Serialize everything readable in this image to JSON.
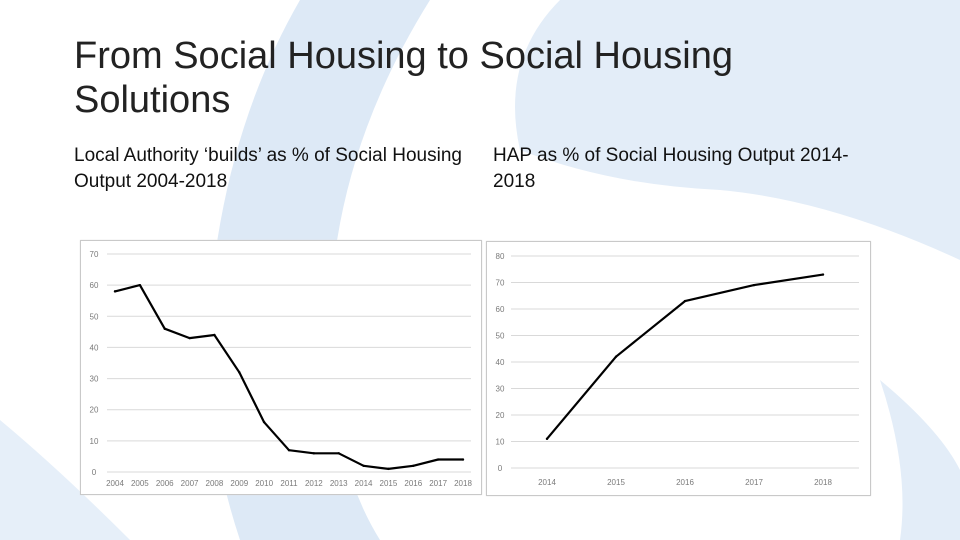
{
  "slide": {
    "title": "From Social Housing to Social Housing Solutions",
    "subtitle_left": "Local Authority ‘builds’ as % of Social Housing Output 2004-2018",
    "subtitle_right": "HAP as % of Social Housing Output 2014-2018"
  },
  "colors": {
    "background_shape": "#dde9f6",
    "background_shape_dark": "#cfdff1",
    "line": "#000000",
    "grid": "#d9d9d9",
    "tick_text": "#7a7a7a"
  },
  "chart_data": [
    {
      "type": "line",
      "title": "",
      "xlabel": "",
      "ylabel": "",
      "x": [
        "2004",
        "2005",
        "2006",
        "2007",
        "2008",
        "2009",
        "2010",
        "2011",
        "2012",
        "2013",
        "2014",
        "2015",
        "2016",
        "2017",
        "2018"
      ],
      "series": [
        {
          "values": [
            58,
            60,
            46,
            43,
            44,
            32,
            16,
            7,
            6,
            6,
            2,
            1,
            2,
            4,
            4
          ]
        }
      ],
      "ylim": [
        0,
        70
      ],
      "yticks": [
        0,
        10,
        20,
        30,
        40,
        50,
        60,
        70
      ],
      "grid": true
    },
    {
      "type": "line",
      "title": "",
      "xlabel": "",
      "ylabel": "",
      "x": [
        "2014",
        "2015",
        "2016",
        "2017",
        "2018"
      ],
      "series": [
        {
          "values": [
            11,
            42,
            63,
            69,
            73
          ]
        }
      ],
      "ylim": [
        0,
        80
      ],
      "yticks": [
        0,
        10,
        20,
        30,
        40,
        50,
        60,
        70,
        80
      ],
      "grid": true
    }
  ]
}
